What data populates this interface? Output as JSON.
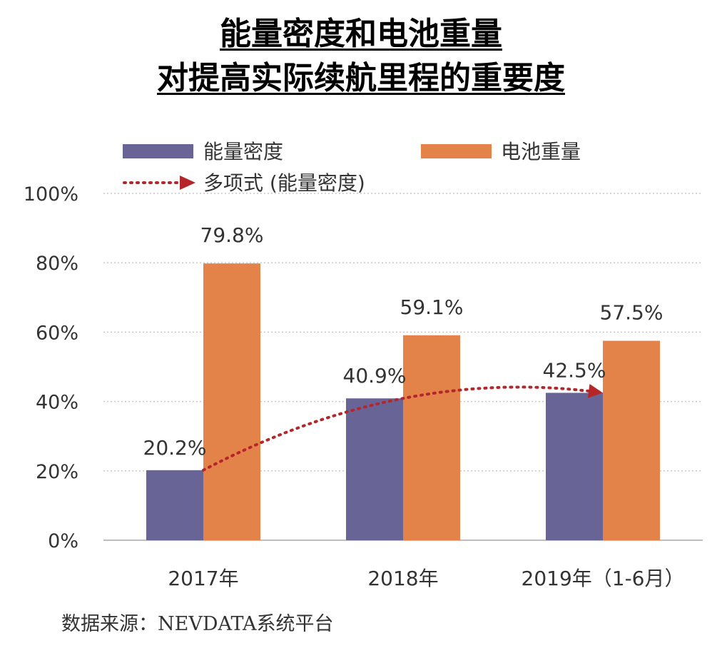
{
  "title_line1": "能量密度和电池重量",
  "title_line2": "对提高实际续航里程的重要度",
  "source": "数据来源：NEVDATA系统平台",
  "colors": {
    "energy": "#686496",
    "weight": "#e3834a",
    "trend": "#b5262b",
    "grid": "#c8c8c8",
    "axis": "#a8a8a8"
  },
  "chart_data": {
    "type": "bar",
    "categories": [
      "2017年",
      "2018年",
      "2019年（1-6月）"
    ],
    "series": [
      {
        "name": "能量密度",
        "values": [
          20.2,
          40.9,
          42.5
        ],
        "labels": [
          "20.2%",
          "40.9%",
          "42.5%"
        ],
        "color": "#686496"
      },
      {
        "name": "电池重量",
        "values": [
          79.8,
          59.1,
          57.5
        ],
        "labels": [
          "79.8%",
          "59.1%",
          "57.5%"
        ],
        "color": "#e3834a"
      }
    ],
    "trendline": {
      "name": "多项式 (能量密度)",
      "of_series": "能量密度",
      "type": "polynomial",
      "style": "dotted-arrow",
      "color": "#b5262b"
    },
    "ylim": [
      0,
      100
    ],
    "yticks": [
      "0%",
      "20%",
      "40%",
      "60%",
      "80%",
      "100%"
    ],
    "ytick_values": [
      0,
      20,
      40,
      60,
      80,
      100
    ],
    "grid": "dotted-horizontal",
    "legend": "top"
  }
}
